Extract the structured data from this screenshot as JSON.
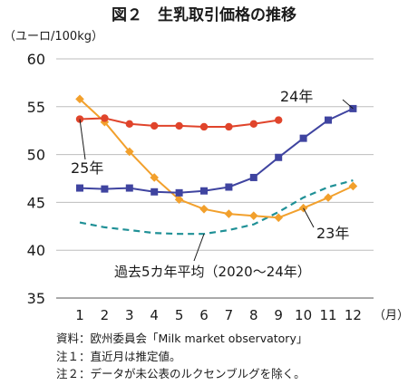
{
  "chart_data": {
    "type": "line",
    "title": "図２　生乳取引価格の推移",
    "ylabel": "（ユーロ/100kg）",
    "xunit": "（月）",
    "categories": [
      "1",
      "2",
      "3",
      "4",
      "5",
      "6",
      "7",
      "8",
      "9",
      "10",
      "11",
      "12"
    ],
    "ylim": [
      35,
      60
    ],
    "yticks": [
      35,
      40,
      45,
      50,
      55,
      60
    ],
    "grid": true,
    "series": [
      {
        "name": "25年",
        "color": "#e0442b",
        "marker": "circle",
        "dash": false,
        "values": [
          53.7,
          53.8,
          53.2,
          53.0,
          53.0,
          52.9,
          52.9,
          53.2,
          53.6,
          null,
          null,
          null
        ]
      },
      {
        "name": "24年",
        "color": "#3f44a0",
        "marker": "square",
        "dash": false,
        "values": [
          46.5,
          46.4,
          46.5,
          46.1,
          46.0,
          46.2,
          46.6,
          47.6,
          49.7,
          51.7,
          53.6,
          54.8
        ]
      },
      {
        "name": "23年",
        "color": "#f2a02c",
        "marker": "diamond",
        "dash": false,
        "values": [
          55.8,
          53.4,
          50.3,
          47.6,
          45.3,
          44.3,
          43.8,
          43.6,
          43.4,
          44.4,
          45.5,
          46.7
        ]
      },
      {
        "name": "過去5カ年平均（2020～24年）",
        "color": "#1f9096",
        "marker": "none",
        "dash": true,
        "values": [
          42.9,
          42.4,
          42.1,
          41.8,
          41.7,
          41.7,
          42.1,
          42.7,
          44.0,
          45.5,
          46.6,
          47.3
        ]
      }
    ]
  },
  "notes": [
    "資料：欧州委員会「Milk market observatory」",
    "注１：直近月は推定値。",
    "注２：データが未公表のルクセンブルグを除く。"
  ]
}
